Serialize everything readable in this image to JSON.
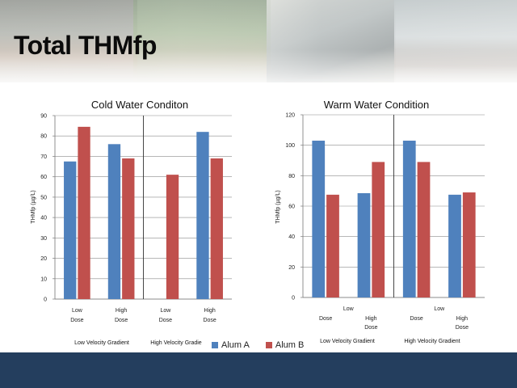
{
  "page": {
    "title": "Total THMfp"
  },
  "colors": {
    "alum_a": "#4f81bd",
    "alum_b": "#c0504d",
    "footer": "#243e5e"
  },
  "legend": [
    {
      "name": "Alum A",
      "color": "#4f81bd"
    },
    {
      "name": "Alum B",
      "color": "#c0504d"
    }
  ],
  "chart_data": [
    {
      "type": "bar",
      "title": "Cold Water Conditon",
      "ylabel": "THMfp (µg/L)",
      "ylim": [
        0,
        90
      ],
      "yticks": [
        0,
        10,
        20,
        30,
        40,
        50,
        60,
        70,
        80,
        90
      ],
      "categories": [
        [
          "Low",
          "Dose"
        ],
        [
          "High",
          "Dose"
        ],
        [
          "Low",
          "Dose"
        ],
        [
          "High",
          "Dose"
        ]
      ],
      "series": [
        {
          "name": "Alum A",
          "values": [
            67.5,
            76,
            null,
            82
          ]
        },
        {
          "name": "Alum B",
          "values": [
            84.5,
            69,
            61,
            69
          ]
        }
      ],
      "groups": [
        "Low Velocity Gradient",
        "High  Velocity Gradie"
      ],
      "divider_after_category": 2,
      "grid": true
    },
    {
      "type": "bar",
      "title": "Warm Water Condition",
      "ylabel": "THMfp (µg/L)",
      "ylim": [
        0,
        120
      ],
      "yticks": [
        0,
        20,
        40,
        60,
        80,
        100,
        120
      ],
      "categories": [
        [
          "Dose"
        ],
        [
          "High",
          "Dose"
        ],
        [
          "Dose"
        ],
        [
          "High",
          "Dose"
        ]
      ],
      "between_labels": [
        "Low",
        "Low"
      ],
      "series": [
        {
          "name": "Alum A",
          "values": [
            103,
            68.5,
            103,
            67.5
          ]
        },
        {
          "name": "Alum B",
          "values": [
            67.5,
            89,
            89,
            69
          ]
        }
      ],
      "groups": [
        "Low Velocity Gradient",
        "High Velocity Gradient"
      ],
      "divider_after_category": 2,
      "grid": true
    }
  ]
}
